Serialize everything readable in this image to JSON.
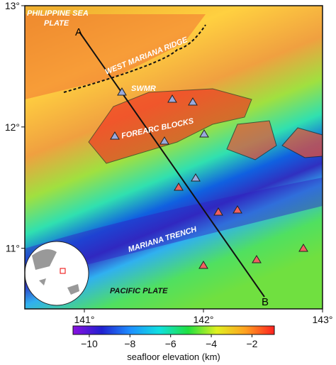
{
  "map": {
    "lat_axis": {
      "range": [
        10.5,
        13
      ],
      "ticks": [
        {
          "value": 13,
          "label": "13°"
        },
        {
          "value": 12,
          "label": "12°"
        },
        {
          "value": 11,
          "label": "11°"
        }
      ]
    },
    "lon_axis": {
      "range": [
        140.5,
        143
      ],
      "ticks": [
        {
          "value": 141,
          "label": "141°"
        },
        {
          "value": 142,
          "label": "142°"
        },
        {
          "value": 143,
          "label": "143°"
        }
      ]
    },
    "labels": {
      "philippine_1": "PHILIPPINE SEA",
      "philippine_2": "PLATE",
      "ridge": "WEST MARIANA RIDGE",
      "swmr": "SWMR",
      "forearc": "FOREARC BLOCKS",
      "trench": "MARIANA TRENCH",
      "pacific": "PACIFIC PLATE"
    },
    "profile": {
      "start": "A",
      "end": "B"
    },
    "colorbar": {
      "range": [
        -10.8,
        -0.9
      ],
      "ticks": [
        {
          "value": -10,
          "label": "−10"
        },
        {
          "value": -8,
          "label": "−8"
        },
        {
          "value": -6,
          "label": "−6"
        },
        {
          "value": -4,
          "label": "−4"
        },
        {
          "value": -2,
          "label": "−2"
        }
      ],
      "colors": [
        "#8a10e0",
        "#2020d0",
        "#1e90ff",
        "#10e0e0",
        "#20e040",
        "#e0f020",
        "#ffa020",
        "#ff2020"
      ],
      "label": "seafloor elevation (km)"
    }
  }
}
